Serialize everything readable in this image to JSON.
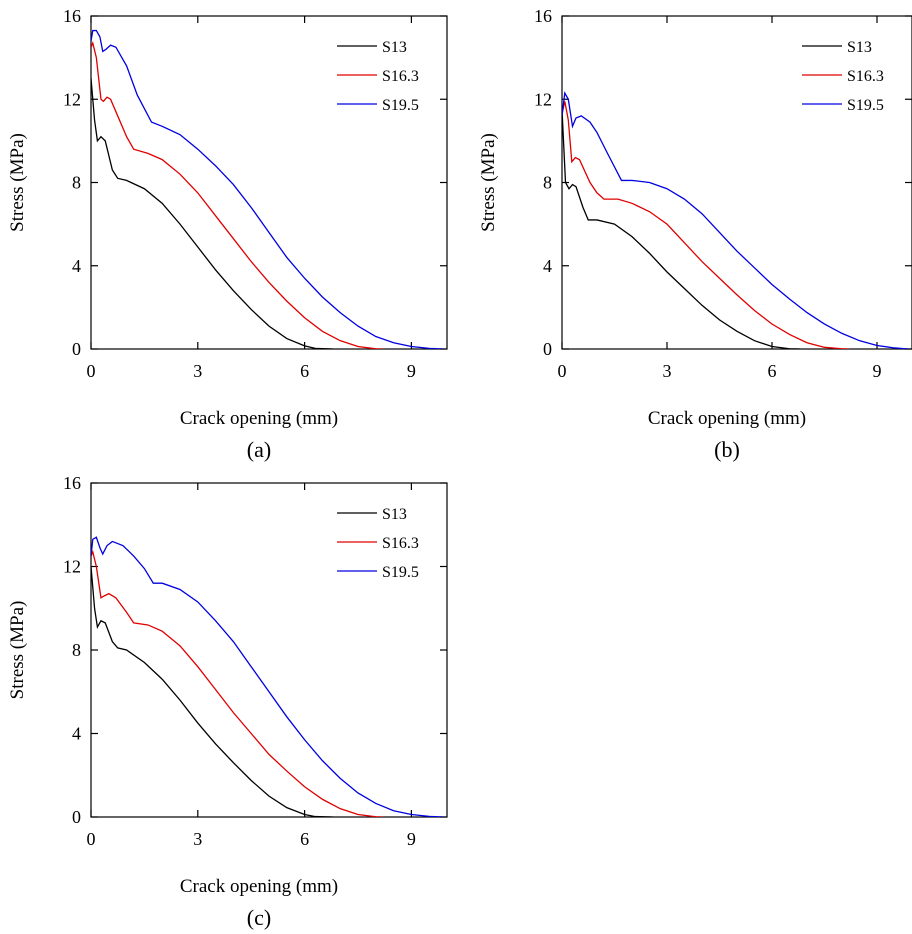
{
  "chart_data": [
    {
      "type": "line",
      "caption": "(a)",
      "xlabel": "Crack opening (mm)",
      "ylabel": "Stress (MPa)",
      "xlim": [
        0,
        10
      ],
      "ylim": [
        0,
        16
      ],
      "xticks": [
        0,
        3,
        6,
        9
      ],
      "yticks": [
        0,
        4,
        8,
        12,
        16
      ],
      "legend_position": "top-right",
      "series": [
        {
          "name": "S13",
          "color": "#000000",
          "points": [
            [
              0,
              13.0
            ],
            [
              0.1,
              11.0
            ],
            [
              0.18,
              10.0
            ],
            [
              0.28,
              10.2
            ],
            [
              0.4,
              10.0
            ],
            [
              0.6,
              8.6
            ],
            [
              0.75,
              8.2
            ],
            [
              1.0,
              8.1
            ],
            [
              1.5,
              7.7
            ],
            [
              2.0,
              7.0
            ],
            [
              2.5,
              6.0
            ],
            [
              3.0,
              4.9
            ],
            [
              3.5,
              3.8
            ],
            [
              4.0,
              2.8
            ],
            [
              4.5,
              1.9
            ],
            [
              5.0,
              1.1
            ],
            [
              5.5,
              0.5
            ],
            [
              6.0,
              0.15
            ],
            [
              6.3,
              0.03
            ],
            [
              6.8,
              0
            ]
          ]
        },
        {
          "name": "S16.3",
          "color": "#e00000",
          "points": [
            [
              0,
              14.5
            ],
            [
              0.05,
              14.7
            ],
            [
              0.15,
              14.0
            ],
            [
              0.28,
              12.0
            ],
            [
              0.35,
              11.9
            ],
            [
              0.45,
              12.1
            ],
            [
              0.55,
              12.0
            ],
            [
              0.8,
              11.0
            ],
            [
              1.0,
              10.2
            ],
            [
              1.2,
              9.6
            ],
            [
              1.6,
              9.4
            ],
            [
              2.0,
              9.1
            ],
            [
              2.5,
              8.4
            ],
            [
              3.0,
              7.5
            ],
            [
              3.5,
              6.4
            ],
            [
              4.0,
              5.3
            ],
            [
              4.5,
              4.2
            ],
            [
              5.0,
              3.2
            ],
            [
              5.5,
              2.3
            ],
            [
              6.0,
              1.5
            ],
            [
              6.5,
              0.85
            ],
            [
              7.0,
              0.4
            ],
            [
              7.5,
              0.12
            ],
            [
              8.0,
              0.01
            ],
            [
              8.2,
              0
            ]
          ]
        },
        {
          "name": "S19.5",
          "color": "#0000e0",
          "points": [
            [
              0,
              14.8
            ],
            [
              0.05,
              15.3
            ],
            [
              0.15,
              15.3
            ],
            [
              0.25,
              15.0
            ],
            [
              0.33,
              14.3
            ],
            [
              0.42,
              14.4
            ],
            [
              0.55,
              14.6
            ],
            [
              0.7,
              14.5
            ],
            [
              1.0,
              13.6
            ],
            [
              1.3,
              12.2
            ],
            [
              1.7,
              10.9
            ],
            [
              2.0,
              10.7
            ],
            [
              2.5,
              10.3
            ],
            [
              3.0,
              9.6
            ],
            [
              3.5,
              8.8
            ],
            [
              4.0,
              7.9
            ],
            [
              4.5,
              6.8
            ],
            [
              5.0,
              5.6
            ],
            [
              5.5,
              4.4
            ],
            [
              6.0,
              3.4
            ],
            [
              6.5,
              2.5
            ],
            [
              7.0,
              1.75
            ],
            [
              7.5,
              1.1
            ],
            [
              8.0,
              0.6
            ],
            [
              8.5,
              0.3
            ],
            [
              9.0,
              0.12
            ],
            [
              9.5,
              0.03
            ],
            [
              9.9,
              0
            ]
          ]
        }
      ]
    },
    {
      "type": "line",
      "caption": "(b)",
      "xlabel": "Crack opening (mm)",
      "ylabel": "Stress (MPa)",
      "xlim": [
        0,
        10
      ],
      "ylim": [
        0,
        16
      ],
      "xticks": [
        0,
        3,
        6,
        9
      ],
      "yticks": [
        0,
        4,
        8,
        12,
        16
      ],
      "legend_position": "top-right",
      "series": [
        {
          "name": "S13",
          "color": "#000000",
          "points": [
            [
              0,
              11.5
            ],
            [
              0.1,
              8.0
            ],
            [
              0.2,
              7.7
            ],
            [
              0.3,
              7.9
            ],
            [
              0.4,
              7.8
            ],
            [
              0.6,
              6.8
            ],
            [
              0.75,
              6.2
            ],
            [
              1.0,
              6.2
            ],
            [
              1.5,
              6.0
            ],
            [
              2.0,
              5.4
            ],
            [
              2.5,
              4.6
            ],
            [
              3.0,
              3.7
            ],
            [
              3.5,
              2.9
            ],
            [
              4.0,
              2.1
            ],
            [
              4.5,
              1.4
            ],
            [
              5.0,
              0.85
            ],
            [
              5.5,
              0.4
            ],
            [
              6.0,
              0.12
            ],
            [
              6.5,
              0.01
            ],
            [
              6.8,
              0
            ]
          ]
        },
        {
          "name": "S16.3",
          "color": "#e00000",
          "points": [
            [
              0,
              11.3
            ],
            [
              0.08,
              11.9
            ],
            [
              0.18,
              11.0
            ],
            [
              0.28,
              9.0
            ],
            [
              0.38,
              9.2
            ],
            [
              0.5,
              9.1
            ],
            [
              0.8,
              8.0
            ],
            [
              1.0,
              7.5
            ],
            [
              1.2,
              7.2
            ],
            [
              1.6,
              7.2
            ],
            [
              2.0,
              7.0
            ],
            [
              2.5,
              6.6
            ],
            [
              3.0,
              6.0
            ],
            [
              3.5,
              5.1
            ],
            [
              4.0,
              4.2
            ],
            [
              4.5,
              3.4
            ],
            [
              5.0,
              2.6
            ],
            [
              5.5,
              1.85
            ],
            [
              6.0,
              1.2
            ],
            [
              6.5,
              0.7
            ],
            [
              7.0,
              0.3
            ],
            [
              7.5,
              0.08
            ],
            [
              8.0,
              0.01
            ],
            [
              8.2,
              0
            ]
          ]
        },
        {
          "name": "S19.5",
          "color": "#0000e0",
          "points": [
            [
              0,
              11.2
            ],
            [
              0.08,
              12.3
            ],
            [
              0.18,
              12.0
            ],
            [
              0.3,
              10.7
            ],
            [
              0.4,
              11.1
            ],
            [
              0.55,
              11.2
            ],
            [
              0.8,
              10.9
            ],
            [
              1.0,
              10.4
            ],
            [
              1.3,
              9.4
            ],
            [
              1.7,
              8.1
            ],
            [
              2.0,
              8.1
            ],
            [
              2.5,
              8.0
            ],
            [
              3.0,
              7.7
            ],
            [
              3.5,
              7.2
            ],
            [
              4.0,
              6.5
            ],
            [
              4.5,
              5.6
            ],
            [
              5.0,
              4.7
            ],
            [
              5.5,
              3.9
            ],
            [
              6.0,
              3.1
            ],
            [
              6.5,
              2.4
            ],
            [
              7.0,
              1.75
            ],
            [
              7.5,
              1.2
            ],
            [
              8.0,
              0.75
            ],
            [
              8.5,
              0.4
            ],
            [
              9.0,
              0.17
            ],
            [
              9.5,
              0.05
            ],
            [
              9.9,
              0
            ]
          ]
        }
      ]
    },
    {
      "type": "line",
      "caption": "(c)",
      "xlabel": "Crack opening (mm)",
      "ylabel": "Stress (MPa)",
      "xlim": [
        0,
        10
      ],
      "ylim": [
        0,
        16
      ],
      "xticks": [
        0,
        3,
        6,
        9
      ],
      "yticks": [
        0,
        4,
        8,
        12,
        16
      ],
      "legend_position": "top-right",
      "series": [
        {
          "name": "S13",
          "color": "#000000",
          "points": [
            [
              0,
              12.0
            ],
            [
              0.1,
              10.0
            ],
            [
              0.18,
              9.1
            ],
            [
              0.28,
              9.4
            ],
            [
              0.4,
              9.3
            ],
            [
              0.6,
              8.4
            ],
            [
              0.75,
              8.1
            ],
            [
              1.0,
              8.0
            ],
            [
              1.5,
              7.4
            ],
            [
              2.0,
              6.6
            ],
            [
              2.5,
              5.6
            ],
            [
              3.0,
              4.5
            ],
            [
              3.5,
              3.5
            ],
            [
              4.0,
              2.6
            ],
            [
              4.5,
              1.75
            ],
            [
              5.0,
              1.0
            ],
            [
              5.5,
              0.45
            ],
            [
              6.0,
              0.12
            ],
            [
              6.3,
              0.02
            ],
            [
              6.8,
              0
            ]
          ]
        },
        {
          "name": "S16.3",
          "color": "#e00000",
          "points": [
            [
              0,
              12.5
            ],
            [
              0.05,
              12.7
            ],
            [
              0.15,
              12.0
            ],
            [
              0.28,
              10.5
            ],
            [
              0.38,
              10.6
            ],
            [
              0.5,
              10.7
            ],
            [
              0.7,
              10.5
            ],
            [
              1.0,
              9.8
            ],
            [
              1.2,
              9.3
            ],
            [
              1.6,
              9.2
            ],
            [
              2.0,
              8.9
            ],
            [
              2.5,
              8.2
            ],
            [
              3.0,
              7.2
            ],
            [
              3.5,
              6.1
            ],
            [
              4.0,
              5.0
            ],
            [
              4.5,
              4.0
            ],
            [
              5.0,
              3.0
            ],
            [
              5.5,
              2.2
            ],
            [
              6.0,
              1.45
            ],
            [
              6.5,
              0.85
            ],
            [
              7.0,
              0.4
            ],
            [
              7.5,
              0.12
            ],
            [
              8.0,
              0.01
            ],
            [
              8.2,
              0
            ]
          ]
        },
        {
          "name": "S19.5",
          "color": "#0000e0",
          "points": [
            [
              0,
              12.5
            ],
            [
              0.05,
              13.3
            ],
            [
              0.15,
              13.4
            ],
            [
              0.25,
              12.9
            ],
            [
              0.33,
              12.6
            ],
            [
              0.45,
              13.0
            ],
            [
              0.6,
              13.2
            ],
            [
              0.9,
              13.0
            ],
            [
              1.2,
              12.5
            ],
            [
              1.5,
              11.9
            ],
            [
              1.75,
              11.2
            ],
            [
              2.0,
              11.2
            ],
            [
              2.5,
              10.9
            ],
            [
              3.0,
              10.3
            ],
            [
              3.5,
              9.4
            ],
            [
              4.0,
              8.4
            ],
            [
              4.5,
              7.2
            ],
            [
              5.0,
              6.0
            ],
            [
              5.5,
              4.8
            ],
            [
              6.0,
              3.7
            ],
            [
              6.5,
              2.7
            ],
            [
              7.0,
              1.85
            ],
            [
              7.5,
              1.15
            ],
            [
              8.0,
              0.65
            ],
            [
              8.5,
              0.3
            ],
            [
              9.0,
              0.12
            ],
            [
              9.5,
              0.03
            ],
            [
              9.9,
              0
            ]
          ]
        }
      ]
    }
  ]
}
